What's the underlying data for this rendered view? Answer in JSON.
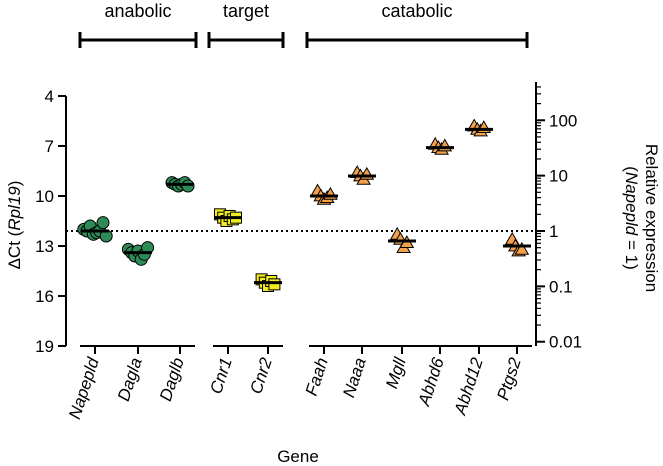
{
  "chart_data": {
    "type": "scatter",
    "xlabel": "Gene",
    "ylabel_left": {
      "prefix": "ΔCt (",
      "italic": "Rpl19",
      "suffix": ")"
    },
    "ylabel_right": {
      "line1": "Relative expression",
      "line2_prefix": "(",
      "line2_italic": "Napepld",
      "line2_suffix": " = 1)"
    },
    "left_axis": {
      "min": 4,
      "max": 19,
      "inverted": true,
      "ticks": [
        "4",
        "7",
        "10",
        "13",
        "16",
        "19"
      ]
    },
    "right_axis": {
      "scale": "log",
      "ticks": [
        "100",
        "10",
        "1",
        "0.1",
        "0.01"
      ]
    },
    "reference_line": {
      "delta_ct": 12.1,
      "relative": 1,
      "style": "dotted"
    },
    "groups": [
      {
        "name": "anabolic",
        "genes": [
          "Napepld",
          "Dagla",
          "Daglb"
        ]
      },
      {
        "name": "target",
        "genes": [
          "Cnr1",
          "Cnr2"
        ]
      },
      {
        "name": "catabolic",
        "genes": [
          "Faah",
          "Naaa",
          "Mgll",
          "Abhd6",
          "Abhd12",
          "Ptgs2"
        ]
      }
    ],
    "series": [
      {
        "gene": "Napepld",
        "group": "anabolic",
        "marker": "circle",
        "color": "#2e8b57",
        "mean": 12.1,
        "values": [
          12.0,
          12.1,
          11.8,
          12.3,
          12.2,
          12.1,
          11.6,
          12.4
        ]
      },
      {
        "gene": "Dagla",
        "group": "anabolic",
        "marker": "circle",
        "color": "#2e8b57",
        "mean": 13.4,
        "values": [
          13.2,
          13.4,
          13.6,
          13.3,
          13.8,
          13.5,
          13.1
        ]
      },
      {
        "gene": "Daglb",
        "group": "anabolic",
        "marker": "circle",
        "color": "#2e8b57",
        "mean": 9.3,
        "values": [
          9.2,
          9.3,
          9.4,
          9.3,
          9.2,
          9.4
        ]
      },
      {
        "gene": "Cnr1",
        "group": "target",
        "marker": "square",
        "color": "#f2ee1d",
        "mean": 11.3,
        "values": [
          11.1,
          11.3,
          11.5,
          11.2,
          11.4,
          11.3
        ]
      },
      {
        "gene": "Cnr2",
        "group": "target",
        "marker": "square",
        "color": "#f2ee1d",
        "mean": 15.2,
        "values": [
          15.0,
          15.2,
          15.4,
          15.1,
          15.3
        ]
      },
      {
        "gene": "Faah",
        "group": "catabolic",
        "marker": "triangle",
        "color": "#f5a04a",
        "mean": 10.0,
        "values": [
          9.7,
          10.0,
          10.2,
          10.1,
          9.9
        ]
      },
      {
        "gene": "Naaa",
        "group": "catabolic",
        "marker": "triangle",
        "color": "#f5a04a",
        "mean": 8.8,
        "values": [
          8.6,
          8.8,
          9.0,
          8.7
        ]
      },
      {
        "gene": "Mgll",
        "group": "catabolic",
        "marker": "triangle",
        "color": "#f5a04a",
        "mean": 12.7,
        "values": [
          12.3,
          12.6,
          13.1,
          12.8
        ]
      },
      {
        "gene": "Abhd6",
        "group": "catabolic",
        "marker": "triangle",
        "color": "#f5a04a",
        "mean": 7.1,
        "values": [
          6.9,
          7.1,
          7.2,
          7.0
        ]
      },
      {
        "gene": "Abhd12",
        "group": "catabolic",
        "marker": "triangle",
        "color": "#f5a04a",
        "mean": 6.0,
        "values": [
          5.8,
          6.0,
          6.1,
          5.9
        ]
      },
      {
        "gene": "Ptgs2",
        "group": "catabolic",
        "marker": "triangle",
        "color": "#f5a04a",
        "mean": 13.0,
        "values": [
          12.6,
          13.0,
          13.3,
          13.2
        ]
      }
    ]
  }
}
